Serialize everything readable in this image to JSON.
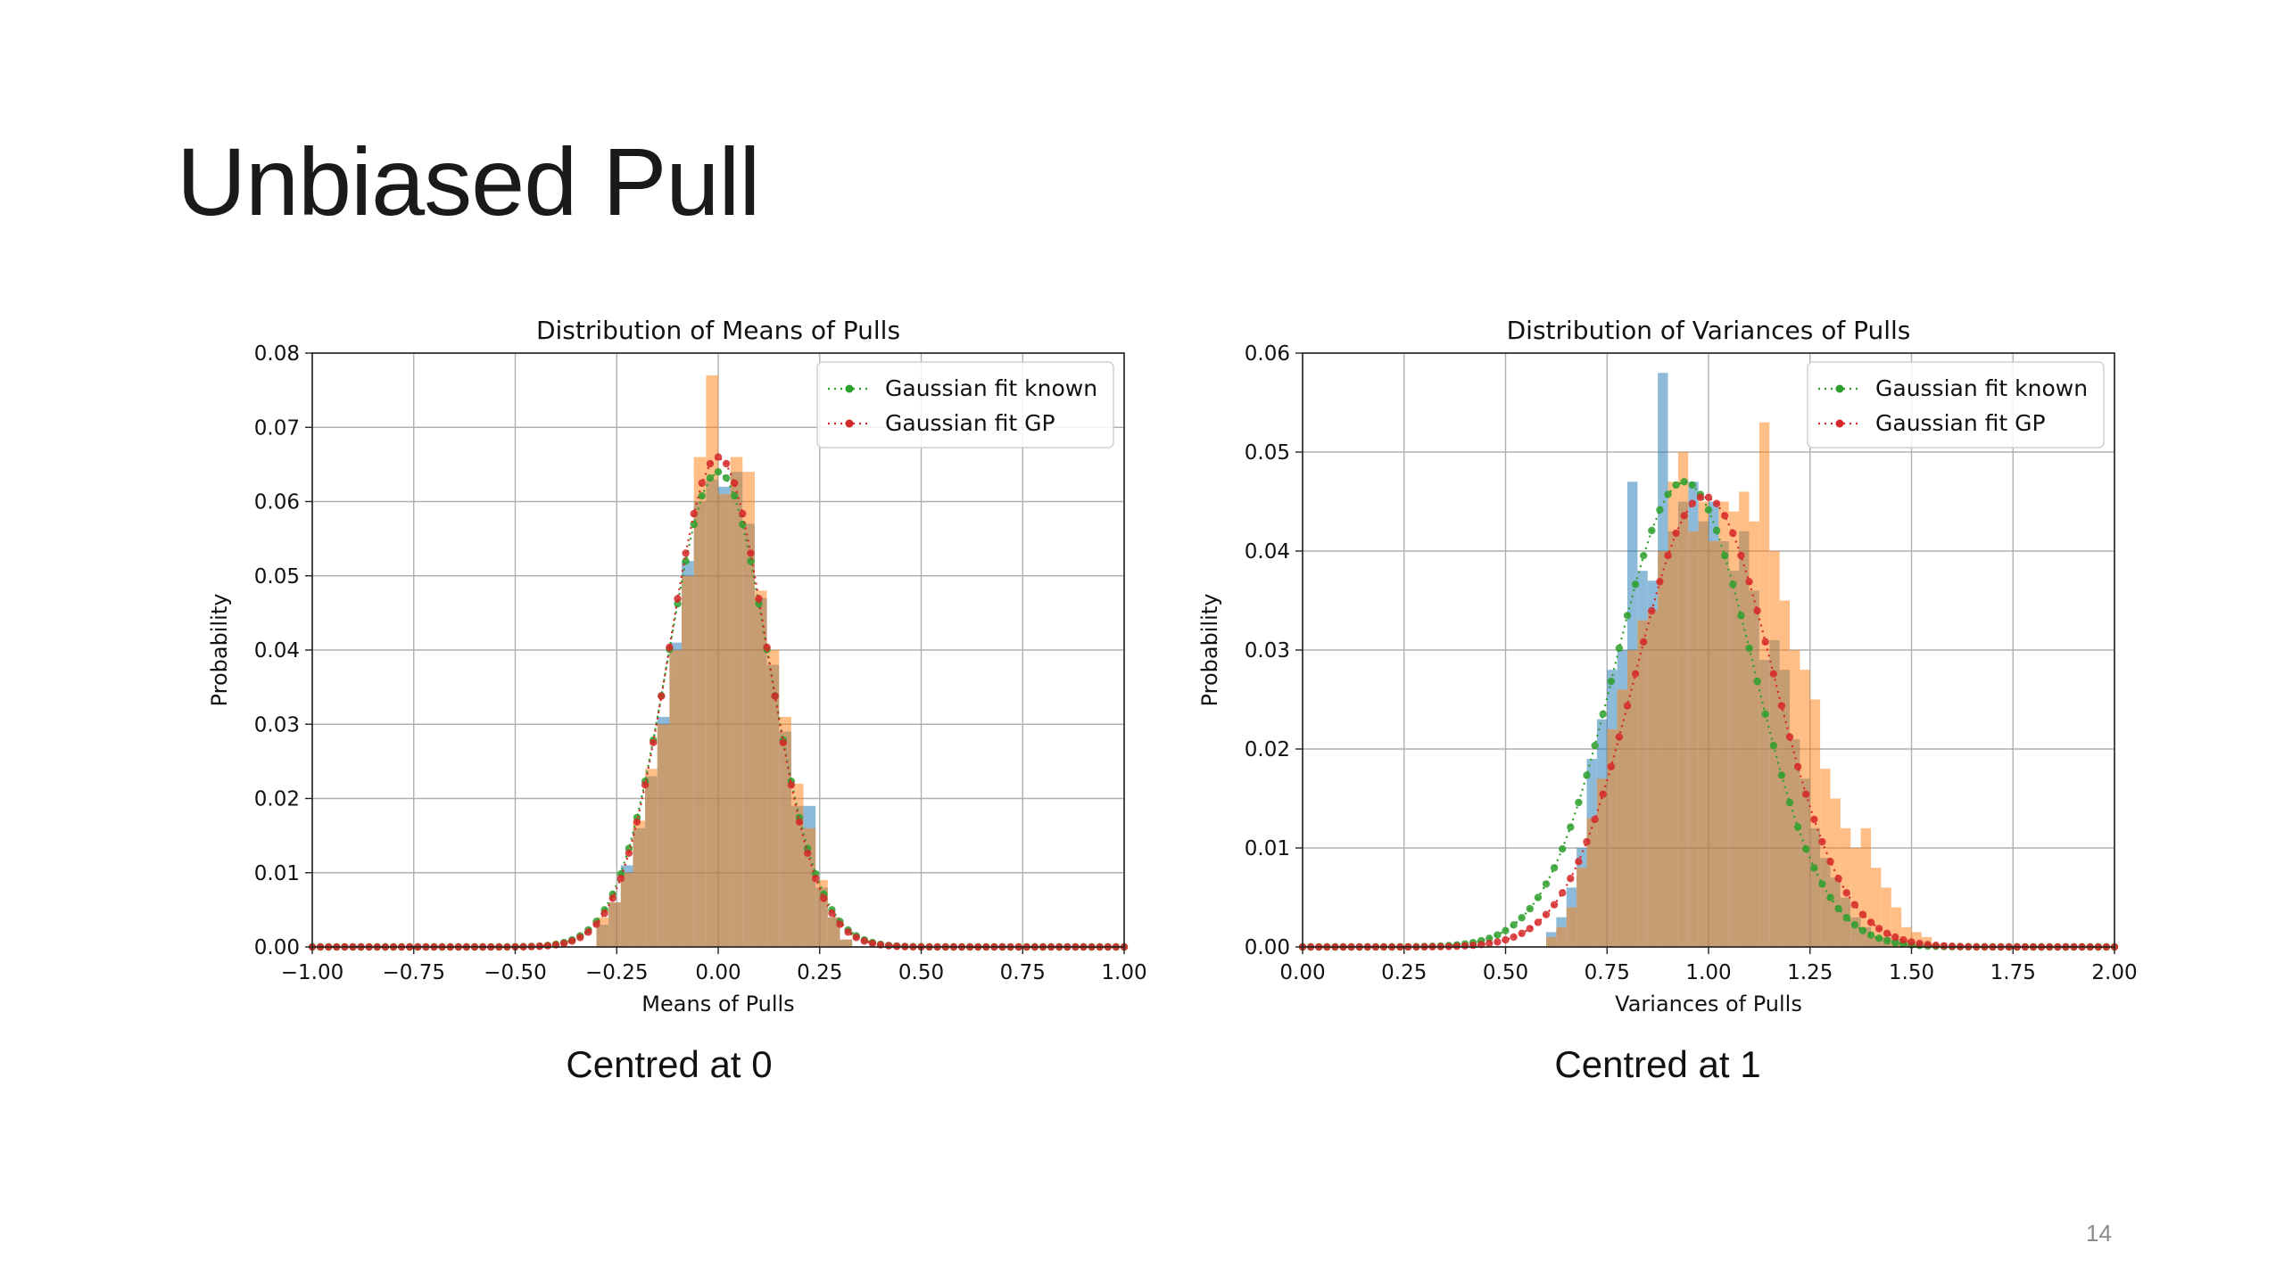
{
  "slide": {
    "title": "Unbiased Pull",
    "captions": [
      "Centred at 0",
      "Centred at 1"
    ],
    "page_number": "14"
  },
  "colors": {
    "hist_a": "#1f77b4",
    "hist_b": "#ff7f0e",
    "fit_known": "#2ca02c",
    "fit_gp": "#d62728",
    "grid": "#b0b0b0"
  },
  "chart_data": [
    {
      "type": "bar",
      "title": "Distribution of Means of Pulls",
      "xlabel": "Means of Pulls",
      "ylabel": "Probability",
      "xlim": [
        -1.0,
        1.0
      ],
      "ylim": [
        0.0,
        0.08
      ],
      "xticks": [
        -1.0,
        -0.75,
        -0.5,
        -0.25,
        0.0,
        0.25,
        0.5,
        0.75,
        1.0
      ],
      "xtick_labels": [
        "−1.00",
        "−0.75",
        "−0.50",
        "−0.25",
        "0.00",
        "0.25",
        "0.50",
        "0.75",
        "1.00"
      ],
      "yticks": [
        0.0,
        0.01,
        0.02,
        0.03,
        0.04,
        0.05,
        0.06,
        0.07,
        0.08
      ],
      "ytick_labels": [
        "0.00",
        "0.01",
        "0.02",
        "0.03",
        "0.04",
        "0.05",
        "0.06",
        "0.07",
        "0.08"
      ],
      "grid": true,
      "legend": "top-right",
      "legend_entries": [
        "Gaussian fit known",
        "Gaussian fit GP"
      ],
      "histograms": [
        {
          "color": "hist_a",
          "bin_edges": [
            -0.3,
            -0.27,
            -0.24,
            -0.21,
            -0.18,
            -0.15,
            -0.12,
            -0.09,
            -0.06,
            -0.03,
            0.0,
            0.03,
            0.06,
            0.09,
            0.12,
            0.15,
            0.18,
            0.21,
            0.24,
            0.27,
            0.3,
            0.33
          ],
          "values": [
            0.003,
            0.006,
            0.011,
            0.016,
            0.023,
            0.031,
            0.041,
            0.052,
            0.06,
            0.063,
            0.062,
            0.064,
            0.057,
            0.047,
            0.038,
            0.029,
            0.019,
            0.019,
            0.008,
            0.004,
            0.001
          ]
        },
        {
          "color": "hist_b",
          "bin_edges": [
            -0.3,
            -0.27,
            -0.24,
            -0.21,
            -0.18,
            -0.15,
            -0.12,
            -0.09,
            -0.06,
            -0.03,
            0.0,
            0.03,
            0.06,
            0.09,
            0.12,
            0.15,
            0.18,
            0.21,
            0.24,
            0.27,
            0.3,
            0.33
          ],
          "values": [
            0.004,
            0.006,
            0.01,
            0.017,
            0.024,
            0.03,
            0.04,
            0.05,
            0.066,
            0.077,
            0.061,
            0.066,
            0.064,
            0.048,
            0.04,
            0.031,
            0.022,
            0.016,
            0.009,
            0.004,
            0.001
          ]
        }
      ],
      "series": [
        {
          "name": "Gaussian fit known",
          "color": "fit_known",
          "style": "dotted-markers",
          "mean": 0.0,
          "sd": 0.124,
          "peak": 0.064
        },
        {
          "name": "Gaussian fit GP",
          "color": "fit_gp",
          "style": "dotted-markers",
          "mean": 0.0,
          "sd": 0.121,
          "peak": 0.066
        }
      ]
    },
    {
      "type": "bar",
      "title": "Distribution of Variances of Pulls",
      "xlabel": "Variances of Pulls",
      "ylabel": "Probability",
      "xlim": [
        0.0,
        2.0
      ],
      "ylim": [
        0.0,
        0.06
      ],
      "xticks": [
        0.0,
        0.25,
        0.5,
        0.75,
        1.0,
        1.25,
        1.5,
        1.75,
        2.0
      ],
      "xtick_labels": [
        "0.00",
        "0.25",
        "0.50",
        "0.75",
        "1.00",
        "1.25",
        "1.50",
        "1.75",
        "2.00"
      ],
      "yticks": [
        0.0,
        0.01,
        0.02,
        0.03,
        0.04,
        0.05,
        0.06
      ],
      "ytick_labels": [
        "0.00",
        "0.01",
        "0.02",
        "0.03",
        "0.04",
        "0.05",
        "0.06"
      ],
      "grid": true,
      "legend": "top-right",
      "legend_entries": [
        "Gaussian fit known",
        "Gaussian fit GP"
      ],
      "histograms": [
        {
          "color": "hist_a",
          "bin_edges": [
            0.6,
            0.625,
            0.65,
            0.675,
            0.7,
            0.725,
            0.75,
            0.775,
            0.8,
            0.825,
            0.85,
            0.875,
            0.9,
            0.925,
            0.95,
            0.975,
            1.0,
            1.025,
            1.05,
            1.075,
            1.1,
            1.125,
            1.15,
            1.175,
            1.2,
            1.225,
            1.25,
            1.275,
            1.3,
            1.325,
            1.35,
            1.375,
            1.4,
            1.425,
            1.45,
            1.475,
            1.5,
            1.525,
            1.55
          ],
          "values": [
            0.0015,
            0.003,
            0.006,
            0.01,
            0.019,
            0.023,
            0.028,
            0.03,
            0.047,
            0.038,
            0.037,
            0.058,
            0.042,
            0.045,
            0.047,
            0.043,
            0.045,
            0.041,
            0.038,
            0.042,
            0.036,
            0.029,
            0.031,
            0.028,
            0.021,
            0.017,
            0.012,
            0.009,
            0.007,
            0.005,
            0.003,
            0.002,
            0.001,
            0.001,
            0.0008,
            0.0005,
            0.0003,
            0.0002
          ]
        },
        {
          "color": "hist_b",
          "bin_edges": [
            0.6,
            0.625,
            0.65,
            0.675,
            0.7,
            0.725,
            0.75,
            0.775,
            0.8,
            0.825,
            0.85,
            0.875,
            0.9,
            0.925,
            0.95,
            0.975,
            1.0,
            1.025,
            1.05,
            1.075,
            1.1,
            1.125,
            1.15,
            1.175,
            1.2,
            1.225,
            1.25,
            1.275,
            1.3,
            1.325,
            1.35,
            1.375,
            1.4,
            1.425,
            1.45,
            1.475,
            1.5,
            1.525,
            1.55
          ],
          "values": [
            0.001,
            0.002,
            0.004,
            0.008,
            0.013,
            0.017,
            0.022,
            0.026,
            0.03,
            0.033,
            0.034,
            0.04,
            0.047,
            0.05,
            0.042,
            0.045,
            0.041,
            0.045,
            0.044,
            0.046,
            0.043,
            0.053,
            0.04,
            0.035,
            0.03,
            0.028,
            0.025,
            0.018,
            0.015,
            0.012,
            0.01,
            0.012,
            0.008,
            0.006,
            0.004,
            0.002,
            0.0015,
            0.001
          ]
        }
      ],
      "series": [
        {
          "name": "Gaussian fit known",
          "color": "fit_known",
          "style": "dotted-markers",
          "mean": 0.94,
          "sd": 0.17,
          "peak": 0.047
        },
        {
          "name": "Gaussian fit GP",
          "color": "fit_gp",
          "style": "dotted-markers",
          "mean": 0.99,
          "sd": 0.17,
          "peak": 0.0455
        }
      ]
    }
  ]
}
